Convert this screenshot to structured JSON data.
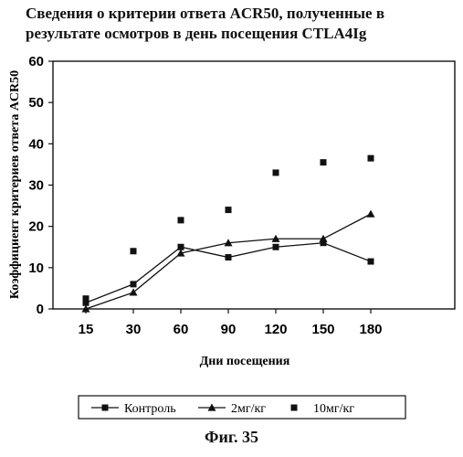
{
  "figure_caption": "Фиг. 35",
  "chart_data": {
    "type": "line",
    "title_lines": [
      "Сведения о критерии ответа ACR50, полученные в",
      "результате осмотров в день посещения CTLA4Ig"
    ],
    "xlabel": "Дни посещения",
    "ylabel": "Коэффициент критериев ответа ACR50",
    "categories": [
      "15",
      "30",
      "60",
      "90",
      "120",
      "150",
      "180"
    ],
    "ylim": [
      0,
      60
    ],
    "yticks": [
      0,
      10,
      20,
      30,
      40,
      50,
      60
    ],
    "grid": false,
    "legend_position": "bottom",
    "series": [
      {
        "name": "Контроль",
        "marker": "square",
        "line": true,
        "values": [
          1.5,
          6,
          15,
          12.5,
          15,
          16,
          11.5
        ]
      },
      {
        "name": "2мг/кг",
        "marker": "triangle",
        "line": true,
        "values": [
          0,
          4,
          13.5,
          16,
          17,
          17,
          23
        ]
      },
      {
        "name": "10мг/кг",
        "marker": "square",
        "line": false,
        "values": [
          2.5,
          14,
          21.5,
          24,
          33,
          35.5,
          36.5
        ]
      }
    ]
  }
}
